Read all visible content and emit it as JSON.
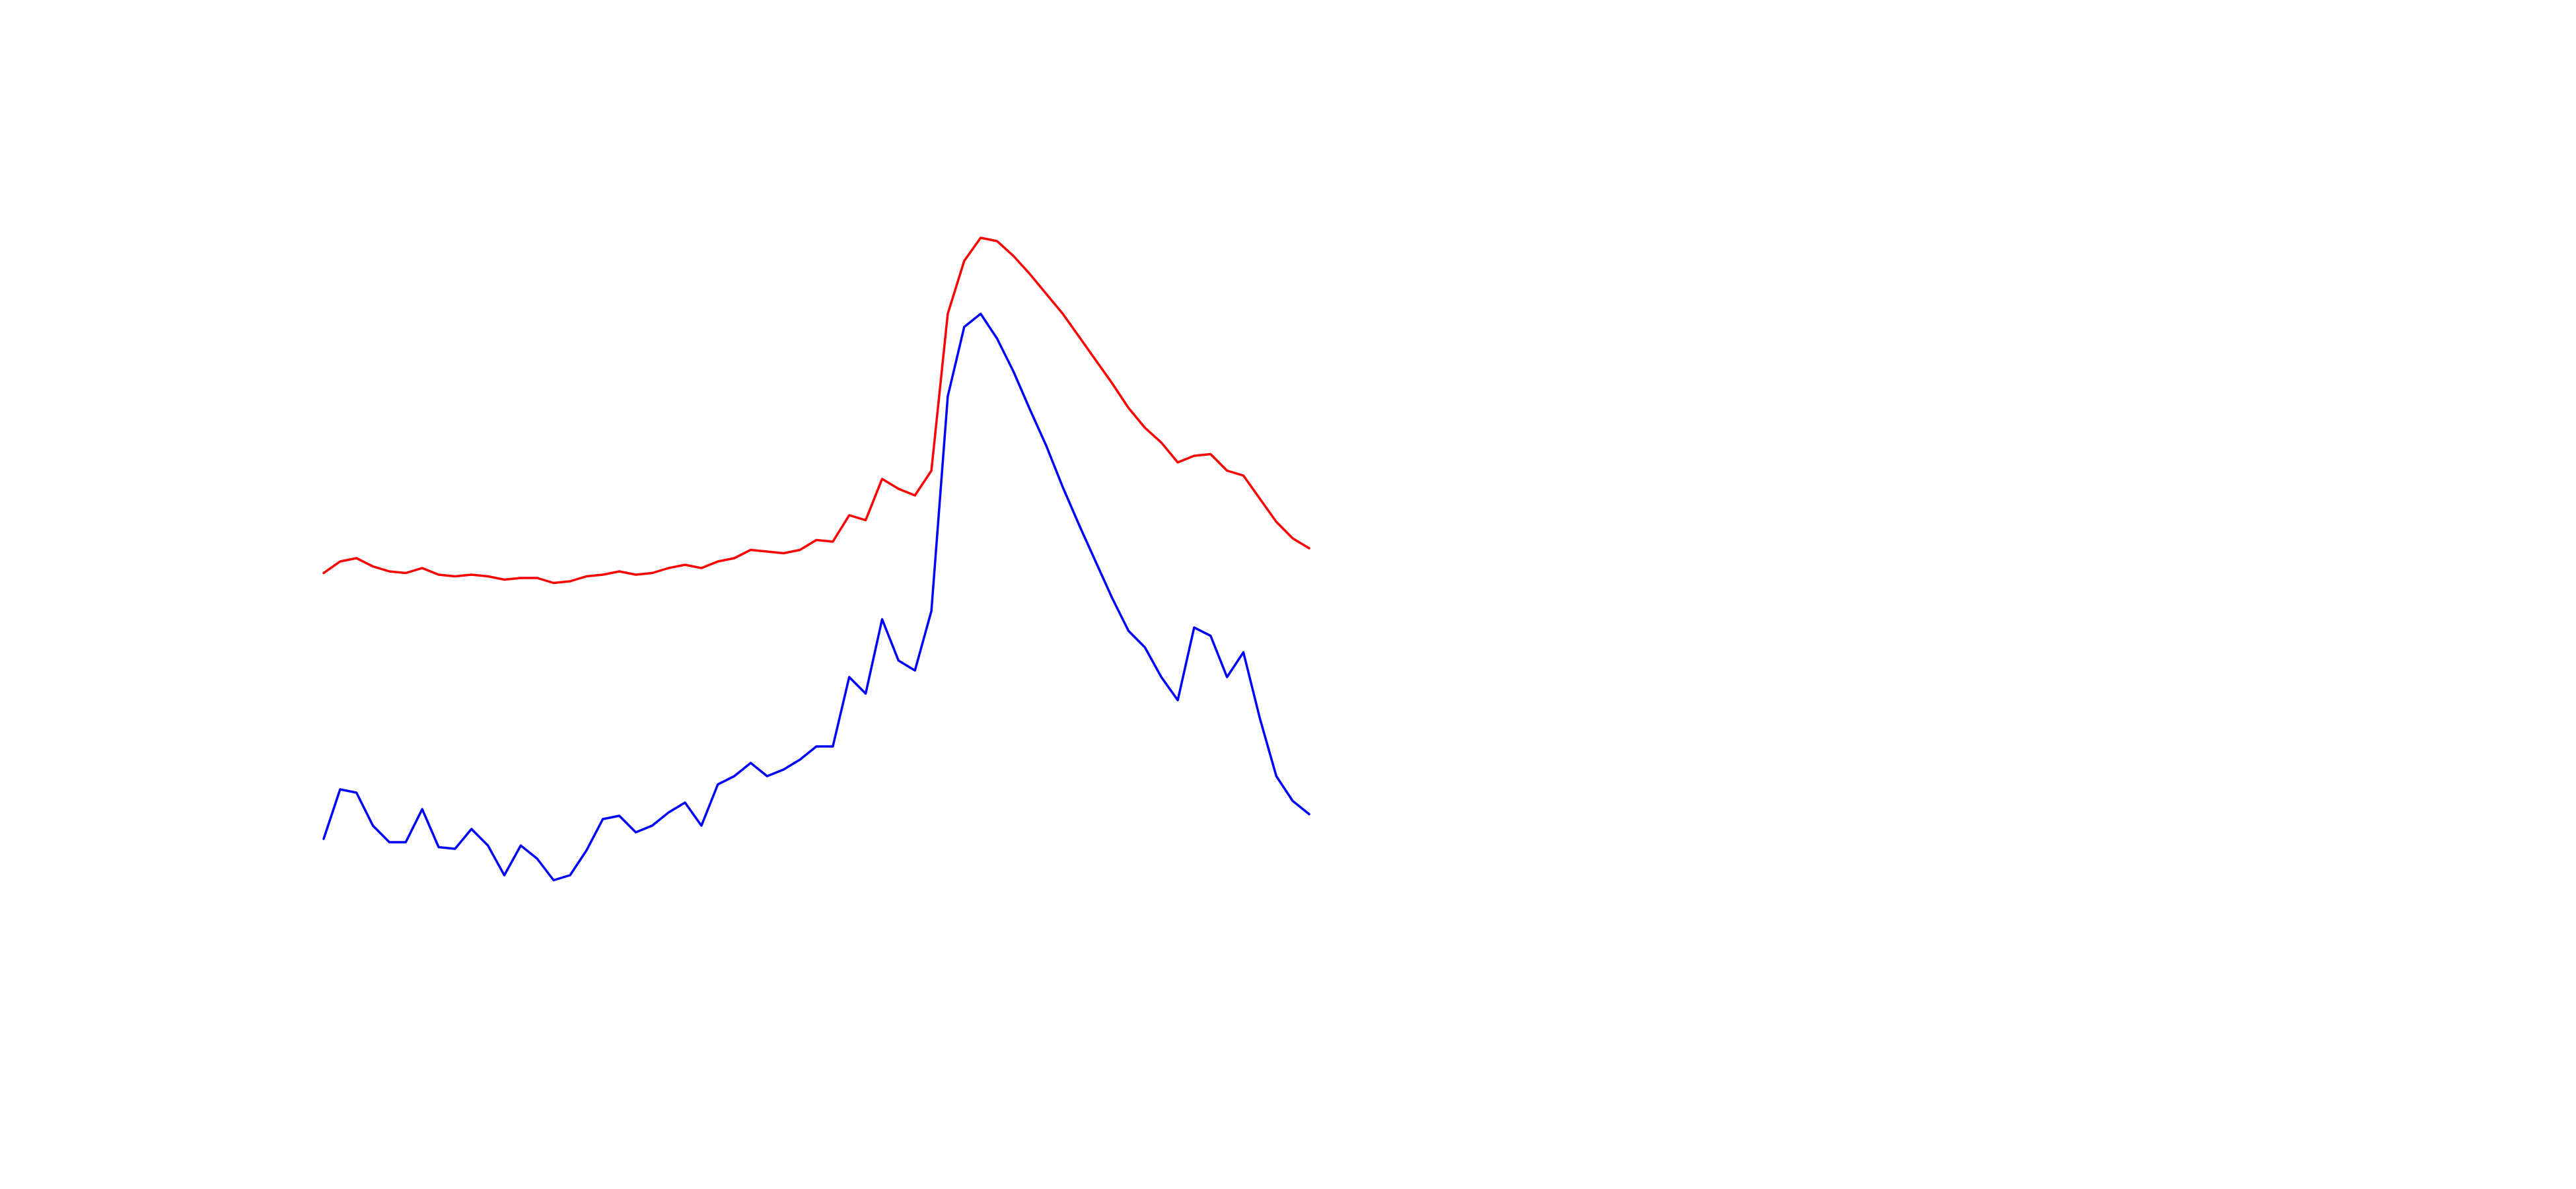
{
  "chart_data": {
    "type": "line",
    "x": [
      0,
      1,
      2,
      3,
      4,
      5,
      6,
      7,
      8,
      9,
      10,
      11,
      12,
      13,
      14,
      15,
      16,
      17,
      18,
      19,
      20,
      21,
      22,
      23,
      24,
      25,
      26,
      27,
      28,
      29,
      30,
      31,
      32,
      33,
      34,
      35,
      36,
      37,
      38,
      39,
      40,
      41,
      42,
      43,
      44,
      45,
      46,
      47,
      48,
      49,
      50,
      51,
      52,
      53,
      54,
      55,
      56,
      57,
      58,
      59,
      60
    ],
    "xlim": [
      0,
      60
    ],
    "ylim": [
      0,
      720
    ],
    "series": [
      {
        "color": "#ff0000",
        "values": [
          373,
          380,
          382,
          377,
          374,
          373,
          376,
          372,
          371,
          372,
          371,
          369,
          370,
          370,
          367,
          368,
          371,
          372,
          374,
          372,
          373,
          376,
          378,
          376,
          380,
          382,
          387,
          386,
          385,
          387,
          393,
          392,
          408,
          405,
          430,
          424,
          420,
          435,
          530,
          562,
          576,
          574,
          565,
          554,
          542,
          530,
          516,
          502,
          488,
          473,
          461,
          452,
          440,
          444,
          445,
          435,
          432,
          418,
          404,
          394,
          388
        ]
      },
      {
        "color": "#0000ff",
        "values": [
          212,
          242,
          240,
          220,
          210,
          210,
          230,
          207,
          206,
          218,
          208,
          190,
          208,
          200,
          187,
          190,
          205,
          224,
          226,
          216,
          220,
          228,
          234,
          220,
          245,
          250,
          258,
          250,
          254,
          260,
          268,
          268,
          310,
          300,
          345,
          320,
          314,
          350,
          480,
          522,
          530,
          515,
          495,
          472,
          450,
          425,
          402,
          380,
          358,
          338,
          328,
          310,
          296,
          340,
          335,
          310,
          325,
          285,
          250,
          235,
          227
        ]
      }
    ]
  }
}
